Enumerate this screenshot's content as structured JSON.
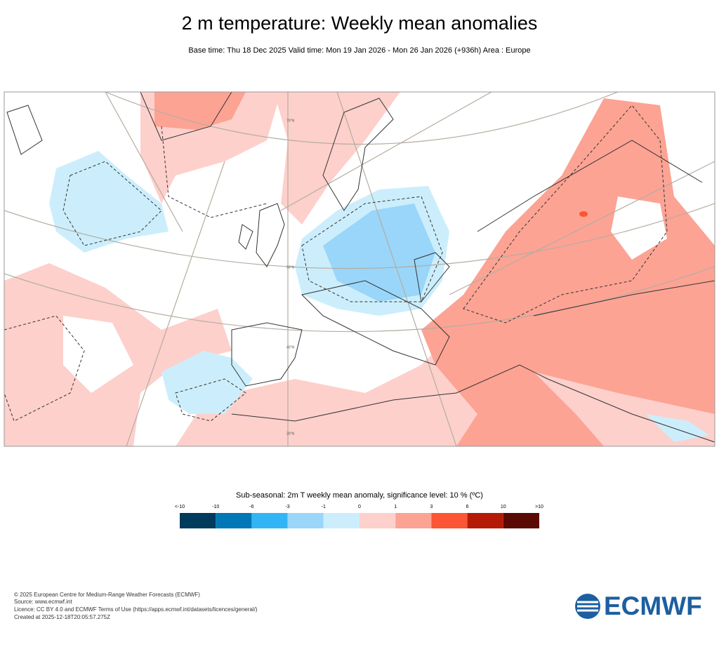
{
  "header": {
    "title": "2 m temperature: Weekly mean anomalies",
    "subtitle": "Base time: Thu 18 Dec 2025 Valid time: Mon 19 Jan 2026 - Mon 26 Jan 2026 (+936h) Area : Europe"
  },
  "map": {
    "graticule_labels": [
      "70°N",
      "50°N",
      "40°N",
      "30°N"
    ]
  },
  "legend": {
    "title": "Sub-seasonal: 2m T weekly mean anomaly, significance level: 10 % (ºC)",
    "labels": [
      "<-10",
      "-10",
      "-6",
      "-3",
      "-1",
      "0",
      "1",
      "3",
      "6",
      "10",
      ">10"
    ],
    "colors": [
      "#003a5c",
      "#0077b6",
      "#33b5f5",
      "#99d6f9",
      "#cceefc",
      "#fdd0cc",
      "#fca394",
      "#fb5533",
      "#b51a06",
      "#5a0a02"
    ]
  },
  "footer": {
    "lines": [
      "© 2025 European Centre for Medium-Range Weather Forecasts (ECMWF)",
      "Source: www.ecmwf.int",
      "Licence: CC BY 4.0 and ECMWF Terms of Use (https://apps.ecmwf.int/datasets/licences/general/)",
      "Created at 2025-12-18T20:05:57.275Z"
    ],
    "logo": "ECMWF"
  }
}
